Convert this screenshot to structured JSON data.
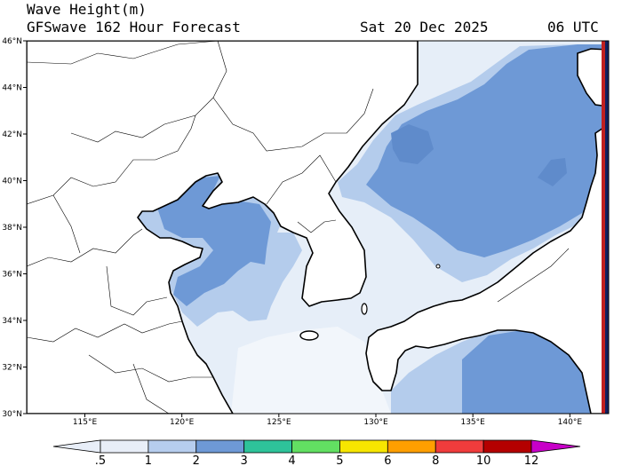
{
  "header": {
    "title": "Wave Height(m)",
    "model_forecast": "GFSwave 162 Hour Forecast",
    "date": "Sat 20 Dec 2025",
    "time": "06 UTC"
  },
  "map": {
    "lon_range": [
      112,
      142
    ],
    "lat_range": [
      30,
      46
    ],
    "lon_ticks": [
      "115°E",
      "120°E",
      "125°E",
      "130°E",
      "135°E",
      "140°E"
    ],
    "lat_ticks": [
      "30°N",
      "32°N",
      "34°N",
      "36°N",
      "38°N",
      "40°N",
      "42°N",
      "44°N",
      "46°N"
    ],
    "colors": {
      "land": "#ffffff",
      "wave_0_5_to_1": "#e6eef8",
      "wave_1_to_2": "#b4ccec",
      "wave_2_to_3": "#6e99d6",
      "coastline": "#000000"
    }
  },
  "colorbar": {
    "labels": [
      ".5",
      "1",
      "2",
      "3",
      "4",
      "5",
      "6",
      "8",
      "10",
      "12"
    ],
    "colors": [
      "#e8eef8",
      "#b6cdee",
      "#6e99d6",
      "#2ec39a",
      "#62df62",
      "#f7e600",
      "#ff9f00",
      "#f03c3c",
      "#b40000",
      "#c800c8"
    ]
  }
}
